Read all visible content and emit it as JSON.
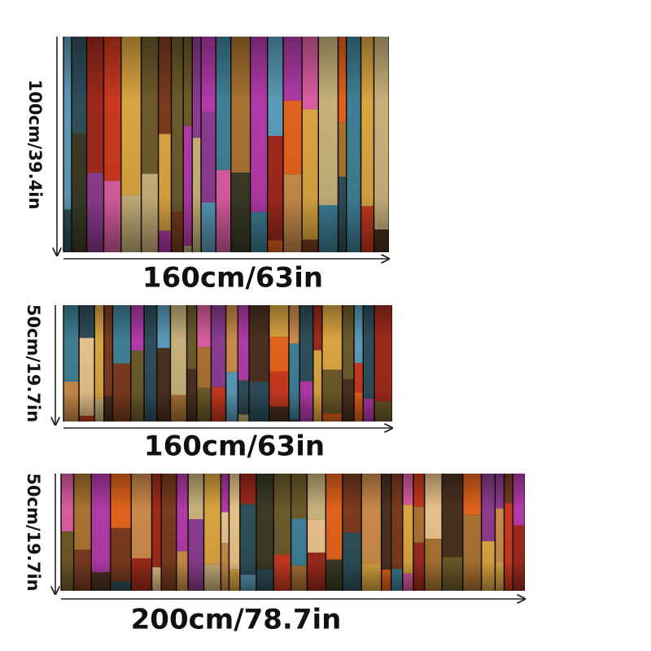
{
  "rugs": [
    {
      "height_label": "100cm/39.4in",
      "width_label": "160cm/63in"
    },
    {
      "height_label": "50cm/19.7in",
      "width_label": "160cm/63in"
    },
    {
      "height_label": "50cm/19.7in",
      "width_label": "200cm/78.7in"
    }
  ]
}
